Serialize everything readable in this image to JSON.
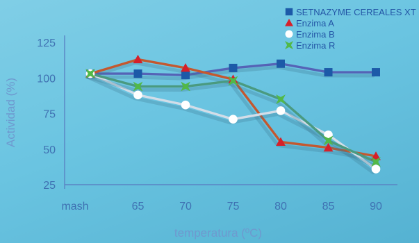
{
  "chart_data": {
    "type": "line",
    "title": "",
    "xlabel": "temperatura (ºC)",
    "ylabel": "Actividad (%)",
    "categories": [
      "mash",
      "65",
      "70",
      "75",
      "80",
      "85",
      "90"
    ],
    "yticks": [
      "25",
      "50",
      "75",
      "100",
      "125"
    ],
    "ylim": [
      25,
      125
    ],
    "grid": false,
    "legend_position": "top-right",
    "series": [
      {
        "name": "SETNAZYME CEREALES XT",
        "marker": "square",
        "color": "#1c5aa8",
        "line_color": "#5563b6",
        "values": [
          103,
          103,
          102,
          107,
          110,
          104,
          104
        ]
      },
      {
        "name": "Enzima A",
        "marker": "triangle",
        "color": "#d5202a",
        "line_color": "#c4582f",
        "values": [
          103,
          113,
          107,
          99,
          55,
          51,
          45
        ]
      },
      {
        "name": "Enzima B",
        "marker": "circle",
        "color": "#ffffff",
        "line_color": "#d2dde8",
        "values": [
          103,
          88,
          81,
          71,
          77,
          60,
          36
        ]
      },
      {
        "name": "Enzima R",
        "marker": "cross",
        "color": "#52b848",
        "line_color": "#4a9a80",
        "values": [
          103,
          94,
          94,
          98,
          85,
          56,
          41
        ]
      }
    ]
  }
}
